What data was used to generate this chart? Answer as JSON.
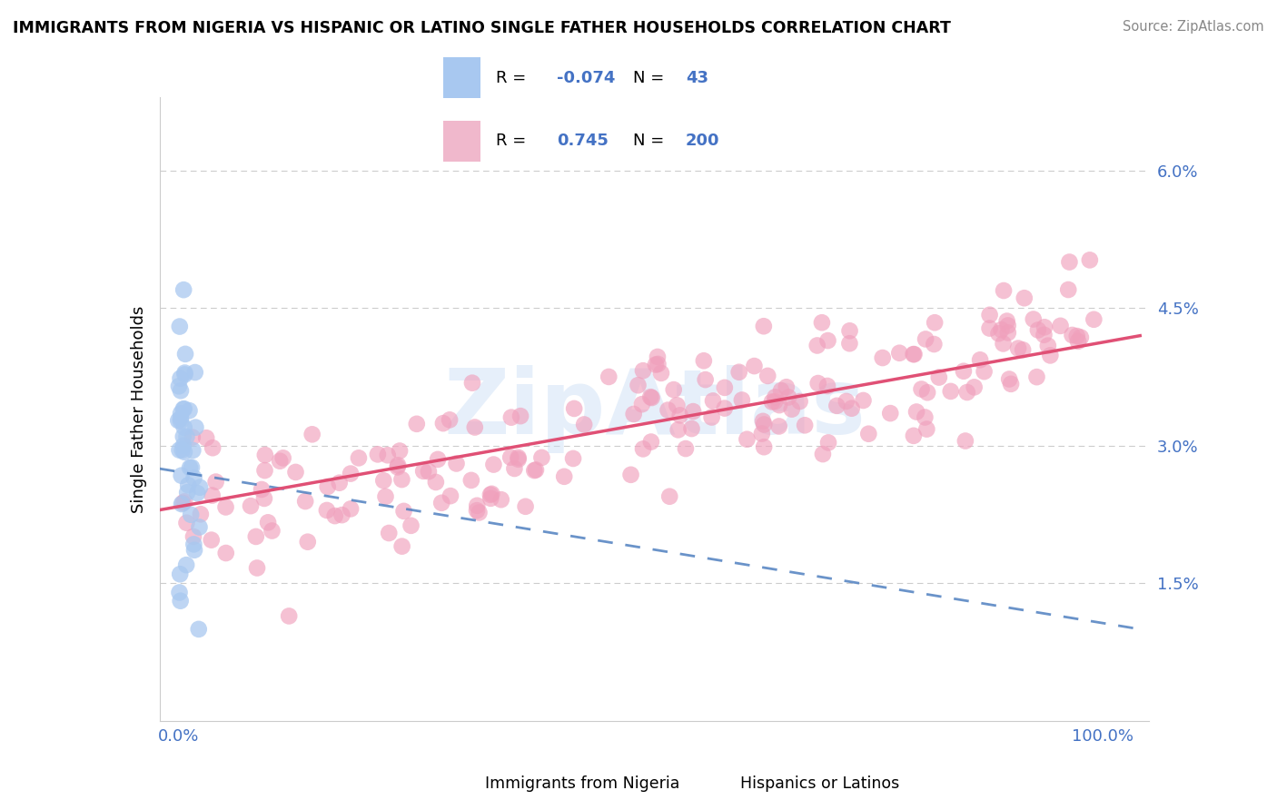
{
  "title": "IMMIGRANTS FROM NIGERIA VS HISPANIC OR LATINO SINGLE FATHER HOUSEHOLDS CORRELATION CHART",
  "source": "Source: ZipAtlas.com",
  "ylabel": "Single Father Households",
  "y_ticks": [
    0.015,
    0.03,
    0.045,
    0.06
  ],
  "y_tick_labels": [
    "1.5%",
    "3.0%",
    "4.5%",
    "6.0%"
  ],
  "blue_color": "#a8c8f0",
  "pink_color": "#f0a0bc",
  "blue_line_color": "#5080c0",
  "pink_line_color": "#e05075",
  "blue_legend_color": "#a8c8f0",
  "pink_legend_color": "#f0b8cc",
  "legend_text_color": "#4472c4",
  "watermark": "ZipAtlas",
  "nigeria_N": 43,
  "hispanic_N": 200,
  "seed": 42,
  "ylim_min": 0.0,
  "ylim_max": 0.068,
  "xlim_min": -0.02,
  "xlim_max": 1.05
}
